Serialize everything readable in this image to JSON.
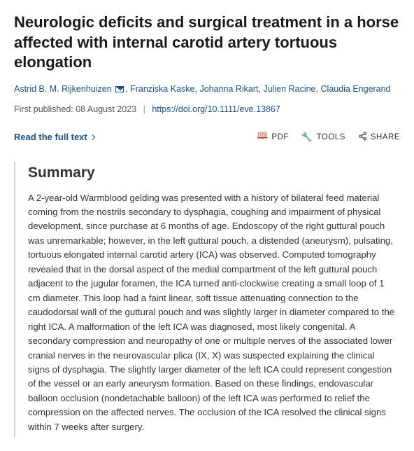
{
  "title": "Neurologic deficits and surgical treatment in a horse affected with internal carotid artery tortuous elongation",
  "authors": [
    "Astrid B. M. Rijkenhuizen",
    "Franziska Kaske",
    "Johanna Rikart",
    "Julien Racine",
    "Claudia Engerand"
  ],
  "corresponding_index": 0,
  "pub_label": "First published:",
  "pub_date": "08 August 2023",
  "doi": "https://doi.org/10.1111/eve.13867",
  "read_full_label": "Read the full text",
  "actions": {
    "pdf": "PDF",
    "tools": "TOOLS",
    "share": "SHARE"
  },
  "summary_heading": "Summary",
  "summary_text": "A 2-year-old Warmblood gelding was presented with a history of bilateral feed material coming from the nostrils secondary to dysphagia, coughing and impairment of physical development, since purchase at 6 months of age. Endoscopy of the right guttural pouch was unremarkable; however, in the left guttural pouch, a distended (aneurysm), pulsating, tortuous elongated internal carotid artery (ICA) was observed. Computed tomography revealed that in the dorsal aspect of the medial compartment of the left guttural pouch adjacent to the jugular foramen, the ICA turned anti-clockwise creating a small loop of 1 cm diameter. This loop had a faint linear, soft tissue attenuating connection to the caudodorsal wall of the guttural pouch and was slightly larger in diameter compared to the right ICA. A malformation of the left ICA was diagnosed, most likely congenital. A secondary compression and neuropathy of one or multiple nerves of the associated lower cranial nerves in the neurovascular plica (IX, X) was suspected explaining the clinical signs of dysphagia. The slightly larger diameter of the left ICA could represent congestion of the vessel or an early aneurysm formation. Based on these findings, endovascular balloon occlusion (nondetachable balloon) of the left ICA was performed to relief the compression on the affected nerves. The occlusion of the ICA resolved the clinical signs within 7 weeks after surgery.",
  "colors": {
    "link": "#1a4f8f",
    "text": "#333333",
    "pdf_icon": "#c0392b",
    "border": "#d0d0d0"
  }
}
